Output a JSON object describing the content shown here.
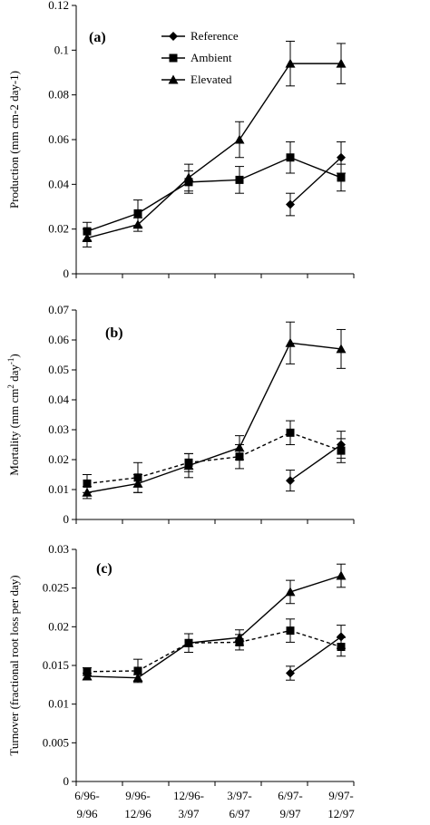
{
  "chart_data": [
    {
      "type": "line",
      "panel_label": "(a)",
      "ylabel": "Production (mm cm-2 day-1)",
      "ylim": [
        0,
        0.12
      ],
      "yticks": [
        "0",
        "0.02",
        "0.04",
        "0.06",
        "0.08",
        "0.1",
        "0.12"
      ],
      "legend": {
        "position": "top-center",
        "entries": [
          "Reference",
          "Ambient",
          "Elevated"
        ]
      },
      "series": [
        {
          "name": "Reference",
          "marker": "diamond",
          "dash": "solid",
          "values": [
            null,
            null,
            null,
            null,
            0.031,
            0.052
          ],
          "errors": [
            null,
            null,
            null,
            null,
            0.005,
            0.007
          ]
        },
        {
          "name": "Ambient",
          "marker": "square",
          "dash": "solid",
          "values": [
            0.019,
            0.027,
            0.041,
            0.042,
            0.052,
            0.043
          ],
          "errors": [
            0.004,
            0.006,
            0.005,
            0.006,
            0.007,
            0.006
          ]
        },
        {
          "name": "Elevated",
          "marker": "triangle",
          "dash": "solid",
          "values": [
            0.016,
            0.022,
            0.043,
            0.06,
            0.094,
            0.094
          ],
          "errors": [
            0.004,
            0.003,
            0.006,
            0.008,
            0.01,
            0.009
          ]
        }
      ]
    },
    {
      "type": "line",
      "panel_label": "(b)",
      "ylabel": "Mortality (mm cm-2 day-1)",
      "ylim": [
        0,
        0.07
      ],
      "yticks": [
        "0",
        "0.01",
        "0.02",
        "0.03",
        "0.04",
        "0.05",
        "0.06",
        "0.07"
      ],
      "series": [
        {
          "name": "Reference",
          "marker": "diamond",
          "dash": "solid",
          "values": [
            null,
            null,
            null,
            null,
            0.013,
            0.025
          ],
          "errors": [
            null,
            null,
            null,
            null,
            0.0035,
            0.0045
          ]
        },
        {
          "name": "Ambient",
          "marker": "square",
          "dash": "dashed",
          "values": [
            0.012,
            0.014,
            0.019,
            0.021,
            0.029,
            0.023
          ],
          "errors": [
            0.003,
            0.005,
            0.003,
            0.004,
            0.004,
            0.004
          ]
        },
        {
          "name": "Elevated",
          "marker": "triangle",
          "dash": "solid",
          "values": [
            0.009,
            0.012,
            0.018,
            0.024,
            0.059,
            0.057
          ],
          "errors": [
            0.002,
            0.003,
            0.004,
            0.004,
            0.007,
            0.0065
          ]
        }
      ]
    },
    {
      "type": "line",
      "panel_label": "(c)",
      "ylabel": "Turnover (fractional root loss per day)",
      "ylim": [
        0,
        0.03
      ],
      "yticks": [
        "0",
        "0.005",
        "0.01",
        "0.015",
        "0.02",
        "0.025",
        "0.03"
      ],
      "categories": [
        "6/96-\n9/96",
        "9/96-\n12/96",
        "12/96-\n3/97",
        "3/97-\n6/97",
        "6/97-\n9/97",
        "9/97-\n12/97"
      ],
      "series": [
        {
          "name": "Reference",
          "marker": "diamond",
          "dash": "solid",
          "values": [
            null,
            null,
            null,
            null,
            0.014,
            0.0187
          ],
          "errors": [
            null,
            null,
            null,
            null,
            0.0009,
            0.0015
          ]
        },
        {
          "name": "Ambient",
          "marker": "square",
          "dash": "dashed",
          "values": [
            0.0142,
            0.0143,
            0.0179,
            0.018,
            0.0195,
            0.0174
          ],
          "errors": [
            0.0005,
            0.0015,
            0.0012,
            0.001,
            0.0015,
            0.0012
          ]
        },
        {
          "name": "Elevated",
          "marker": "triangle",
          "dash": "solid",
          "values": [
            0.0136,
            0.0134,
            0.0179,
            0.0186,
            0.0245,
            0.0266
          ],
          "errors": [
            0.0004,
            0.0004,
            0.0012,
            0.001,
            0.0015,
            0.0015
          ]
        }
      ]
    }
  ]
}
